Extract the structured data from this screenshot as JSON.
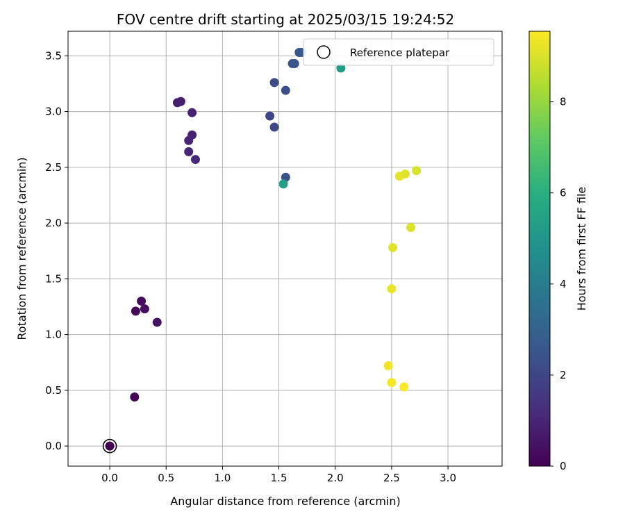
{
  "chart_data": {
    "type": "scatter",
    "title": "FOV centre drift starting at 2025/03/15 19:24:52",
    "xlabel": "Angular distance from reference (arcmin)",
    "ylabel": "Rotation from reference (arcmin)",
    "xlim": [
      -0.37,
      3.48
    ],
    "ylim": [
      -0.18,
      3.72
    ],
    "xticks": [
      "0.0",
      "0.5",
      "1.0",
      "1.5",
      "2.0",
      "2.5",
      "3.0"
    ],
    "xtick_values": [
      0,
      0.5,
      1.0,
      1.5,
      2.0,
      2.5,
      3.0
    ],
    "yticks": [
      "0.0",
      "0.5",
      "1.0",
      "1.5",
      "2.0",
      "2.5",
      "3.0",
      "3.5"
    ],
    "ytick_values": [
      0,
      0.5,
      1.0,
      1.5,
      2.0,
      2.5,
      3.0,
      3.5
    ],
    "grid": true,
    "legend": {
      "placement": "top-right",
      "label": "Reference platepar"
    },
    "reference_point": {
      "x": 0.0,
      "y": 0.0
    },
    "colorbar": {
      "label": "Hours from first FF file",
      "range": [
        0,
        9.55
      ],
      "ticks": [
        "0",
        "2",
        "4",
        "6",
        "8"
      ],
      "tick_values": [
        0,
        2,
        4,
        6,
        8
      ],
      "colormap": "viridis"
    },
    "points": [
      {
        "x": 0.0,
        "y": 0.0,
        "hours": 0.0
      },
      {
        "x": 0.22,
        "y": 0.44,
        "hours": 0.1
      },
      {
        "x": 0.23,
        "y": 1.21,
        "hours": 0.2
      },
      {
        "x": 0.28,
        "y": 1.3,
        "hours": 0.3
      },
      {
        "x": 0.31,
        "y": 1.23,
        "hours": 0.35
      },
      {
        "x": 0.42,
        "y": 1.11,
        "hours": 0.45
      },
      {
        "x": 0.6,
        "y": 3.08,
        "hours": 0.8
      },
      {
        "x": 0.63,
        "y": 3.09,
        "hours": 0.85
      },
      {
        "x": 0.73,
        "y": 2.99,
        "hours": 0.9
      },
      {
        "x": 0.73,
        "y": 2.79,
        "hours": 0.95
      },
      {
        "x": 0.7,
        "y": 2.74,
        "hours": 1.0
      },
      {
        "x": 0.7,
        "y": 2.64,
        "hours": 1.05
      },
      {
        "x": 0.76,
        "y": 2.57,
        "hours": 1.1
      },
      {
        "x": 1.42,
        "y": 2.96,
        "hours": 2.0
      },
      {
        "x": 1.46,
        "y": 2.86,
        "hours": 2.1
      },
      {
        "x": 1.46,
        "y": 3.26,
        "hours": 2.2
      },
      {
        "x": 1.56,
        "y": 3.19,
        "hours": 2.3
      },
      {
        "x": 1.56,
        "y": 2.41,
        "hours": 2.4
      },
      {
        "x": 1.62,
        "y": 3.43,
        "hours": 2.5
      },
      {
        "x": 1.64,
        "y": 3.43,
        "hours": 2.55
      },
      {
        "x": 1.68,
        "y": 3.53,
        "hours": 2.6
      },
      {
        "x": 1.7,
        "y": 3.53,
        "hours": 2.65
      },
      {
        "x": 1.54,
        "y": 2.35,
        "hours": 5.4
      },
      {
        "x": 2.05,
        "y": 3.39,
        "hours": 5.3
      },
      {
        "x": 2.72,
        "y": 2.47,
        "hours": 9.0
      },
      {
        "x": 2.62,
        "y": 2.44,
        "hours": 9.1
      },
      {
        "x": 2.57,
        "y": 2.42,
        "hours": 9.2
      },
      {
        "x": 2.67,
        "y": 1.96,
        "hours": 9.05
      },
      {
        "x": 2.51,
        "y": 1.78,
        "hours": 9.15
      },
      {
        "x": 2.5,
        "y": 1.41,
        "hours": 9.25
      },
      {
        "x": 2.47,
        "y": 0.72,
        "hours": 9.35
      },
      {
        "x": 2.5,
        "y": 0.57,
        "hours": 9.45
      },
      {
        "x": 2.61,
        "y": 0.53,
        "hours": 9.5
      }
    ]
  }
}
